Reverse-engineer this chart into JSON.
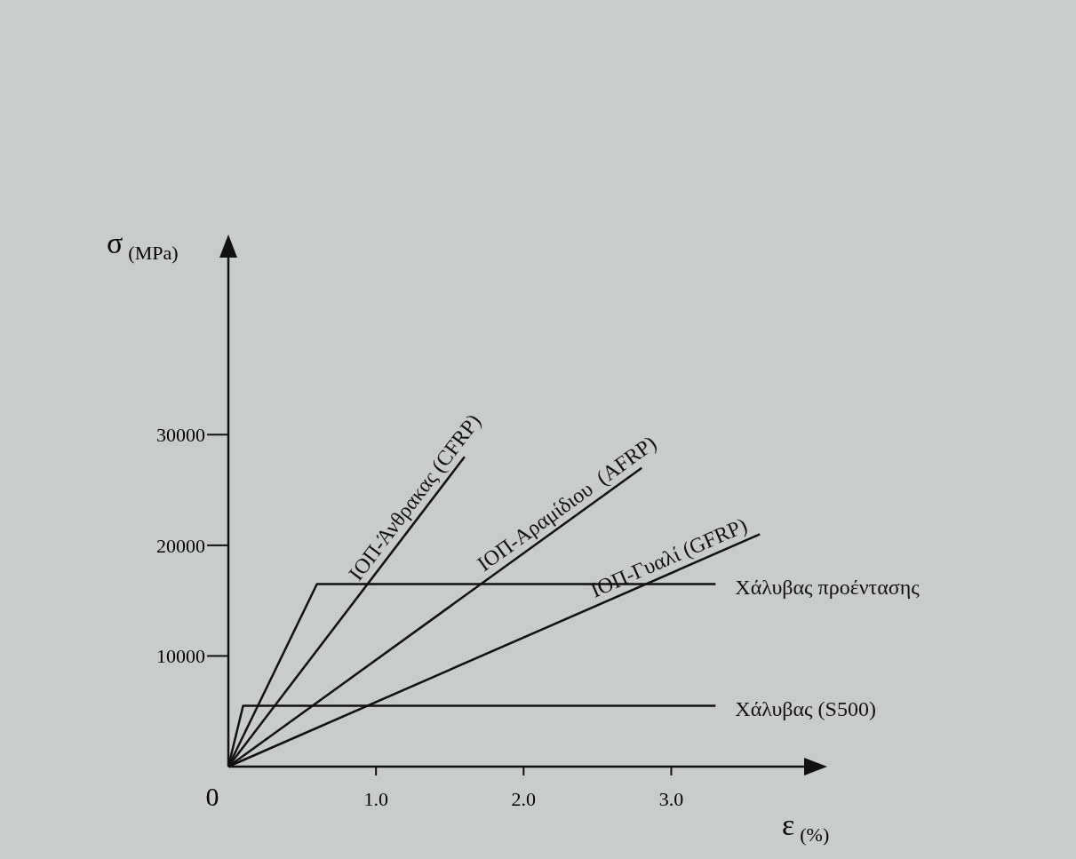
{
  "chart_data": {
    "type": "line",
    "xlabel": "ε$_{(%)}$",
    "ylabel": "σ$_{(MPa)}$",
    "xlim": [
      0,
      3.9
    ],
    "ylim": [
      0,
      46000
    ],
    "xticks": [
      {
        "value": 0,
        "label": "0"
      },
      {
        "value": 1,
        "label": "1.0"
      },
      {
        "value": 2,
        "label": "2.0"
      },
      {
        "value": 3,
        "label": "3.0"
      }
    ],
    "yticks": [
      10000,
      20000,
      30000
    ],
    "marker": "none",
    "line_style": "solid",
    "series": [
      {
        "name": "ΙΟΠ-Άνθρακας (CFRP)",
        "color": "#111111",
        "x": [
          0,
          1.6
        ],
        "values": [
          0,
          28000
        ]
      },
      {
        "name": "ΙΟΠ-Αραμίδιου  (AFRP)",
        "color": "#111111",
        "x": [
          0,
          2.8
        ],
        "values": [
          0,
          27000
        ]
      },
      {
        "name": "ΙΟΠ-Γυαλί (GFRP)",
        "color": "#111111",
        "x": [
          0,
          3.6
        ],
        "values": [
          0,
          21000
        ]
      },
      {
        "name": "Χάλυβας προέντασης",
        "color": "#111111",
        "x": [
          0,
          0.6,
          3.3
        ],
        "values": [
          0,
          16500,
          16500
        ]
      },
      {
        "name": "Χάλυβας (S500)",
        "color": "#111111",
        "x": [
          0,
          0.1,
          3.3
        ],
        "values": [
          0,
          5500,
          5500
        ]
      }
    ]
  }
}
